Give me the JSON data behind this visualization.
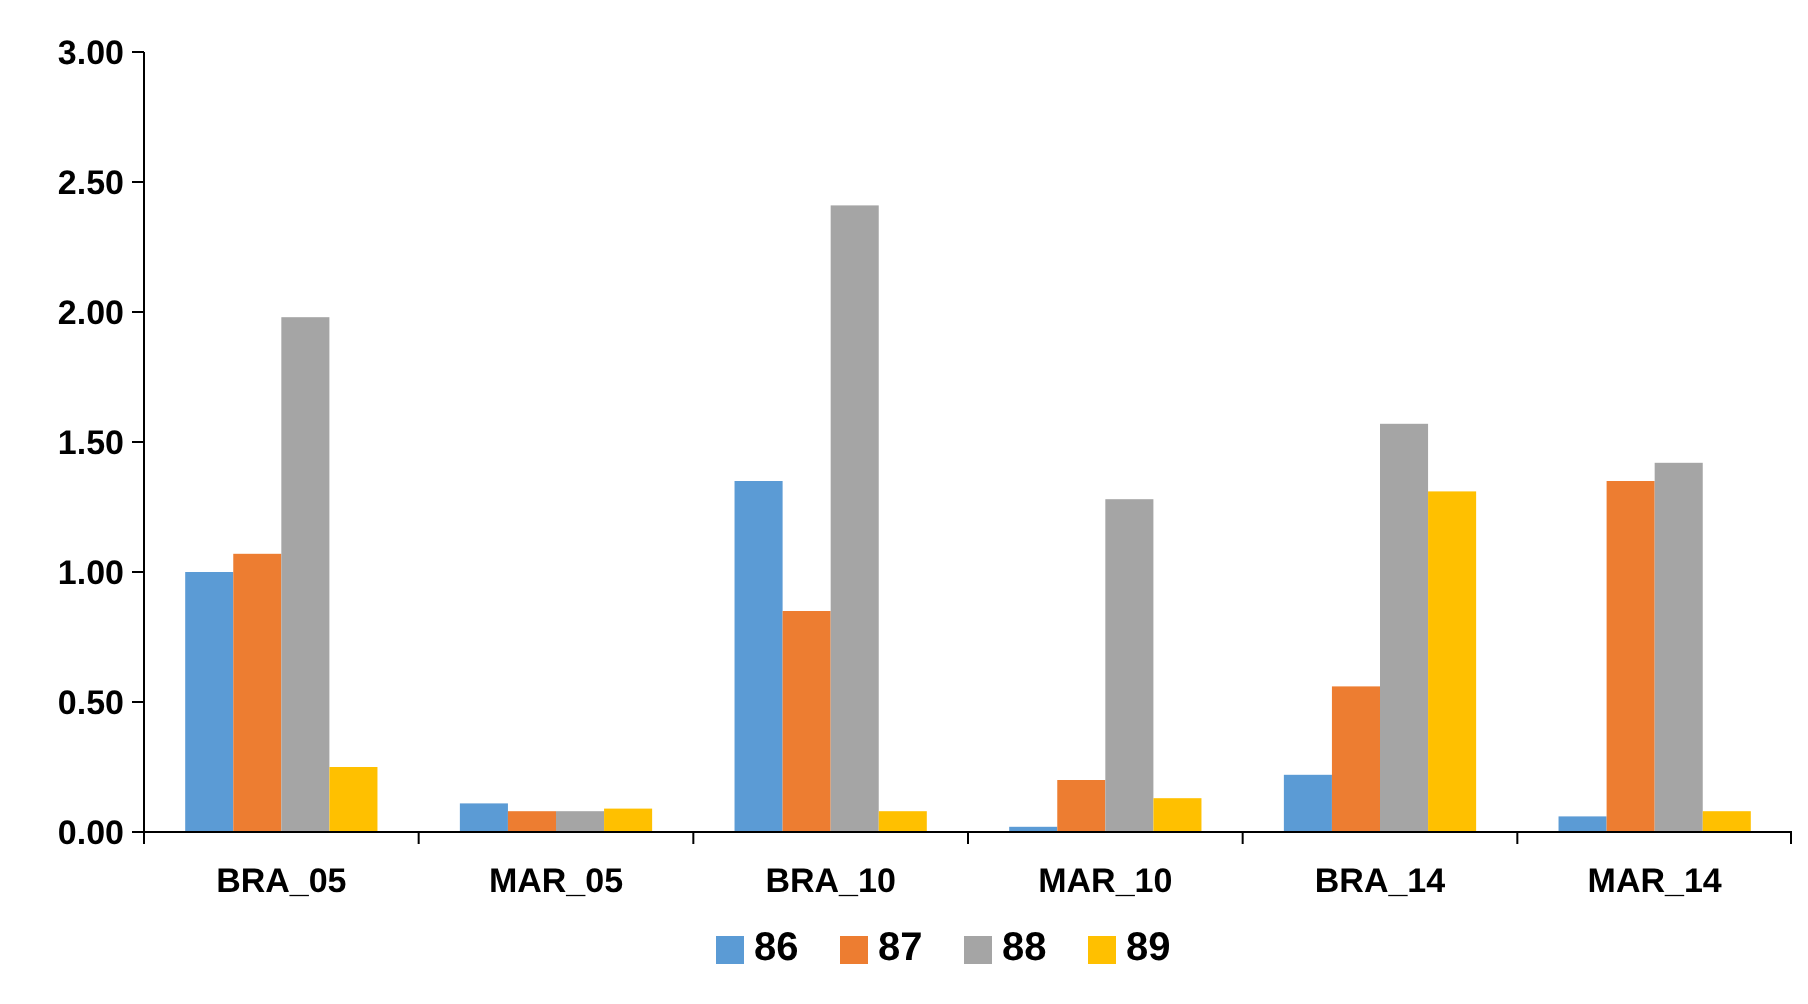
{
  "chart_data": {
    "type": "bar",
    "categories": [
      "BRA_05",
      "MAR_05",
      "BRA_10",
      "MAR_10",
      "BRA_14",
      "MAR_14"
    ],
    "series": [
      {
        "name": "86",
        "color": "#5b9bd5",
        "values": [
          1.0,
          0.11,
          1.35,
          0.02,
          0.22,
          0.06
        ]
      },
      {
        "name": "87",
        "color": "#ed7d31",
        "values": [
          1.07,
          0.08,
          0.85,
          0.2,
          0.56,
          1.35
        ]
      },
      {
        "name": "88",
        "color": "#a5a5a5",
        "values": [
          1.98,
          0.08,
          2.41,
          1.28,
          1.57,
          1.42
        ]
      },
      {
        "name": "89",
        "color": "#ffc000",
        "values": [
          0.25,
          0.09,
          0.08,
          0.13,
          1.31,
          0.08
        ]
      }
    ],
    "ylim": [
      0,
      3
    ],
    "yticks": [
      {
        "value": 0,
        "label": "0.00"
      },
      {
        "value": 0.5,
        "label": "0.50"
      },
      {
        "value": 1,
        "label": "1.00"
      },
      {
        "value": 1.5,
        "label": "1.50"
      },
      {
        "value": 2,
        "label": "2.00"
      },
      {
        "value": 2.5,
        "label": "2.50"
      },
      {
        "value": 3,
        "label": "3.00"
      }
    ],
    "grid": false,
    "legend": "bottom"
  }
}
